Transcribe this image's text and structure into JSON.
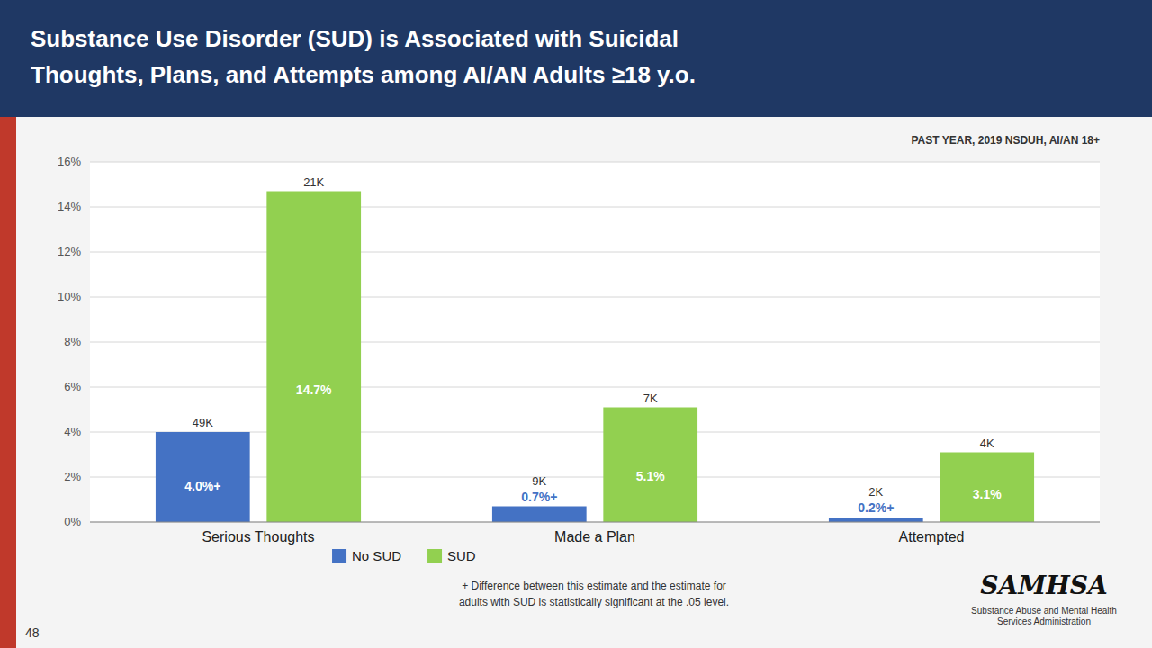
{
  "chart_data": {
    "type": "bar",
    "title": "Substance Use Disorder (SUD) is Associated with Suicidal\nThoughts, Plans, and Attempts among AI/AN Adults ≥18 y.o.",
    "subtitle": "PAST YEAR, 2019 NSDUH, AI/AN 18+",
    "categories": [
      "Serious Thoughts",
      "Made a Plan",
      "Attempted"
    ],
    "series": [
      {
        "name": "No SUD",
        "color": "#4472C4",
        "values": [
          4.0,
          0.7,
          0.2
        ],
        "value_labels": [
          "4.0%+",
          "0.7%+",
          "0.2%+"
        ],
        "count_labels": [
          "49K",
          "9K",
          "2K"
        ]
      },
      {
        "name": "SUD",
        "color": "#92D050",
        "values": [
          14.7,
          5.1,
          3.1
        ],
        "value_labels": [
          "14.7%",
          "5.1%",
          "3.1%"
        ],
        "count_labels": [
          "21K",
          "7K",
          "4K"
        ]
      }
    ],
    "ylim": [
      0,
      16
    ],
    "yticks": [
      {
        "value": 0,
        "label": "0%"
      },
      {
        "value": 2,
        "label": "2%"
      },
      {
        "value": 4,
        "label": "4%"
      },
      {
        "value": 6,
        "label": "6%"
      },
      {
        "value": 8,
        "label": "8%"
      },
      {
        "value": 10,
        "label": "10%"
      },
      {
        "value": 12,
        "label": "12%"
      },
      {
        "value": 14,
        "label": "14%"
      },
      {
        "value": 16,
        "label": "16%"
      }
    ],
    "grid": true,
    "legend": "bottom",
    "data_labels": true,
    "annotations": [
      "+ Difference between this estimate and the estimate for",
      "adults with SUD is statistically significant at the .05 level.",
      "48",
      "SAMHSA",
      "Substance Abuse and Mental Health\nServices Administration"
    ]
  }
}
